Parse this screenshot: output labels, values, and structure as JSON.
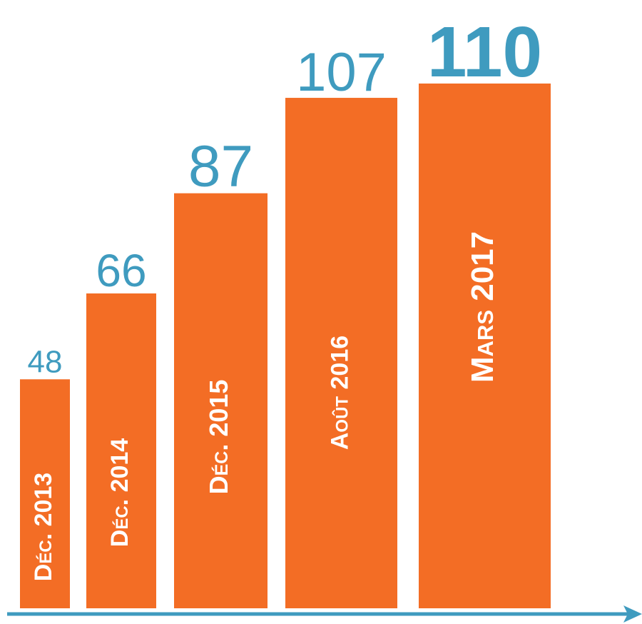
{
  "chart_data": {
    "type": "bar",
    "categories": [
      "Déc. 2013",
      "Déc. 2014",
      "Déc. 2015",
      "Août 2016",
      "Mars 2017"
    ],
    "values": [
      48,
      66,
      87,
      107,
      110
    ],
    "color": "#f36d25",
    "label_color": "#3f9bbf"
  }
}
